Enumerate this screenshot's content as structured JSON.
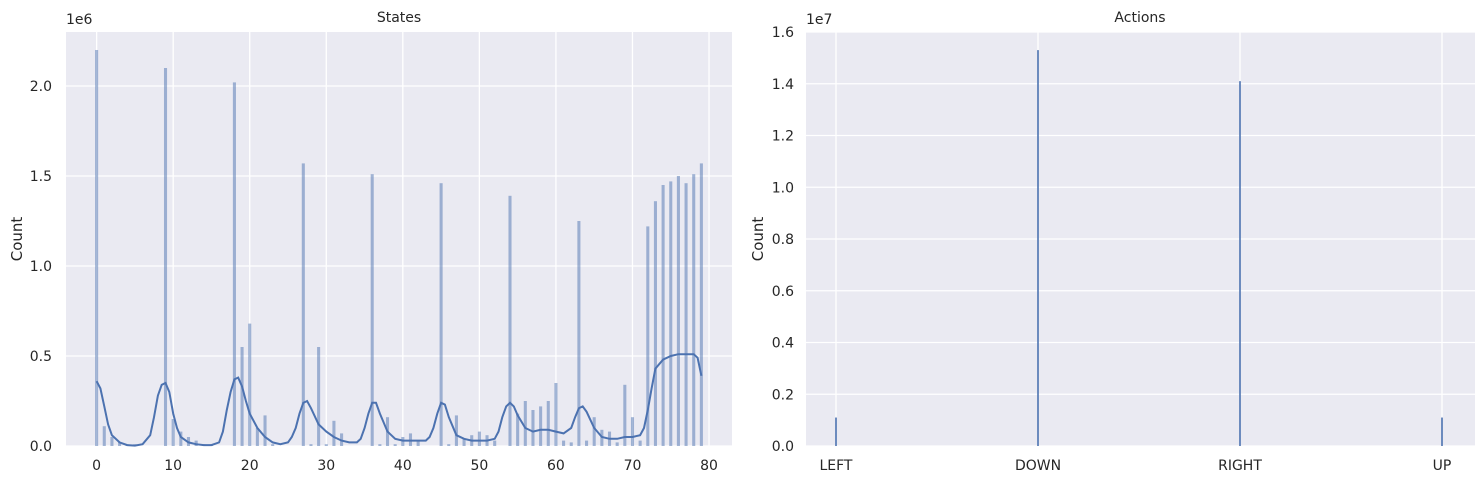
{
  "chart_data": [
    {
      "type": "bar",
      "subtype": "histogram-with-kde",
      "title": "States",
      "xlabel": "",
      "ylabel": "Count",
      "y_offset_text": "1e6",
      "y_multiplier": 1000000,
      "xlim": [
        -4,
        83
      ],
      "ylim": [
        0,
        2.3
      ],
      "xticks": [
        0,
        10,
        20,
        30,
        40,
        50,
        60,
        70,
        80
      ],
      "yticks": [
        0.0,
        0.5,
        1.0,
        1.5,
        2.0
      ],
      "ytick_labels": [
        "0.0",
        "0.5",
        "1.0",
        "1.5",
        "2.0"
      ],
      "grid": true,
      "bar_color": "#4c72b0",
      "bars": {
        "x": [
          0,
          1,
          2,
          3,
          4,
          5,
          6,
          7,
          8,
          9,
          10,
          11,
          12,
          13,
          14,
          15,
          16,
          17,
          18,
          19,
          20,
          21,
          22,
          23,
          24,
          25,
          26,
          27,
          28,
          29,
          30,
          31,
          32,
          33,
          34,
          35,
          36,
          37,
          38,
          39,
          40,
          41,
          42,
          43,
          44,
          45,
          46,
          47,
          48,
          49,
          50,
          51,
          52,
          53,
          54,
          55,
          56,
          57,
          58,
          59,
          60,
          61,
          62,
          63,
          64,
          65,
          66,
          67,
          68,
          69,
          70,
          71,
          72,
          73,
          74,
          75,
          76,
          77,
          78,
          79
        ],
        "values": [
          2.2,
          0.11,
          0.05,
          0.02,
          0.01,
          0.01,
          0.0,
          0.0,
          0.0,
          2.1,
          0.15,
          0.08,
          0.05,
          0.03,
          0.01,
          0.01,
          0.0,
          0.0,
          2.02,
          0.55,
          0.68,
          0.1,
          0.17,
          0.01,
          0.0,
          0.0,
          0.0,
          1.57,
          0.01,
          0.55,
          0.01,
          0.14,
          0.07,
          0.0,
          0.0,
          0.0,
          1.51,
          0.01,
          0.16,
          0.01,
          0.05,
          0.07,
          0.03,
          0.0,
          0.0,
          1.46,
          0.01,
          0.17,
          0.04,
          0.06,
          0.08,
          0.06,
          0.03,
          0.0,
          1.39,
          0.18,
          0.25,
          0.2,
          0.22,
          0.25,
          0.35,
          0.03,
          0.02,
          1.25,
          0.03,
          0.16,
          0.09,
          0.08,
          0.02,
          0.34,
          0.16,
          0.03,
          1.22,
          1.36,
          1.45,
          1.47,
          1.5,
          1.46,
          1.51,
          1.57
        ]
      },
      "kde": {
        "x": [
          0,
          0.5,
          1,
          1.5,
          2,
          3,
          4,
          5,
          6,
          7,
          7.5,
          8,
          8.5,
          9,
          9.5,
          10,
          10.5,
          11,
          12,
          13,
          14,
          15,
          16,
          16.5,
          17,
          17.5,
          18,
          18.5,
          19,
          19.5,
          20,
          21,
          22,
          23,
          24,
          25,
          25.5,
          26,
          26.5,
          27,
          27.5,
          28,
          29,
          30,
          31,
          32,
          33,
          34,
          34.5,
          35,
          35.5,
          36,
          36.5,
          37,
          38,
          39,
          40,
          41,
          42,
          43,
          43.5,
          44,
          44.5,
          45,
          45.5,
          46,
          47,
          48,
          49,
          50,
          51,
          52,
          52.5,
          53,
          53.5,
          54,
          54.5,
          55,
          56,
          57,
          58,
          59,
          60,
          61,
          62,
          62.5,
          63,
          63.5,
          64,
          65,
          66,
          67,
          68,
          69,
          70,
          71,
          71.5,
          72,
          72.5,
          73,
          74,
          75,
          76,
          77,
          78,
          78.5,
          79
        ],
        "values": [
          0.36,
          0.32,
          0.22,
          0.12,
          0.06,
          0.02,
          0.005,
          0.002,
          0.01,
          0.06,
          0.16,
          0.28,
          0.34,
          0.35,
          0.3,
          0.18,
          0.1,
          0.05,
          0.02,
          0.01,
          0.005,
          0.005,
          0.02,
          0.08,
          0.2,
          0.3,
          0.37,
          0.38,
          0.33,
          0.25,
          0.18,
          0.1,
          0.05,
          0.02,
          0.01,
          0.02,
          0.05,
          0.1,
          0.18,
          0.24,
          0.25,
          0.21,
          0.12,
          0.08,
          0.05,
          0.03,
          0.02,
          0.02,
          0.04,
          0.1,
          0.18,
          0.24,
          0.24,
          0.18,
          0.08,
          0.04,
          0.03,
          0.03,
          0.03,
          0.03,
          0.05,
          0.1,
          0.18,
          0.24,
          0.23,
          0.16,
          0.06,
          0.04,
          0.03,
          0.03,
          0.03,
          0.04,
          0.08,
          0.16,
          0.22,
          0.24,
          0.22,
          0.17,
          0.1,
          0.08,
          0.09,
          0.09,
          0.08,
          0.07,
          0.1,
          0.16,
          0.21,
          0.22,
          0.19,
          0.1,
          0.05,
          0.04,
          0.04,
          0.05,
          0.05,
          0.06,
          0.1,
          0.2,
          0.32,
          0.43,
          0.48,
          0.5,
          0.51,
          0.51,
          0.51,
          0.49,
          0.39
        ]
      }
    },
    {
      "type": "bar",
      "subtype": "histogram",
      "title": "Actions",
      "xlabel": "",
      "ylabel": "Count",
      "y_offset_text": "1e7",
      "y_multiplier": 10000000,
      "ylim": [
        0,
        1.6
      ],
      "yticks": [
        0.0,
        0.2,
        0.4,
        0.6,
        0.8,
        1.0,
        1.2,
        1.4,
        1.6
      ],
      "ytick_labels": [
        "0.0",
        "0.2",
        "0.4",
        "0.6",
        "0.8",
        "1.0",
        "1.2",
        "1.4",
        "1.6"
      ],
      "grid": true,
      "bar_color": "#4c72b0",
      "categories": [
        "LEFT",
        "DOWN",
        "RIGHT",
        "UP"
      ],
      "values": [
        0.11,
        1.53,
        1.41,
        0.11
      ]
    }
  ]
}
